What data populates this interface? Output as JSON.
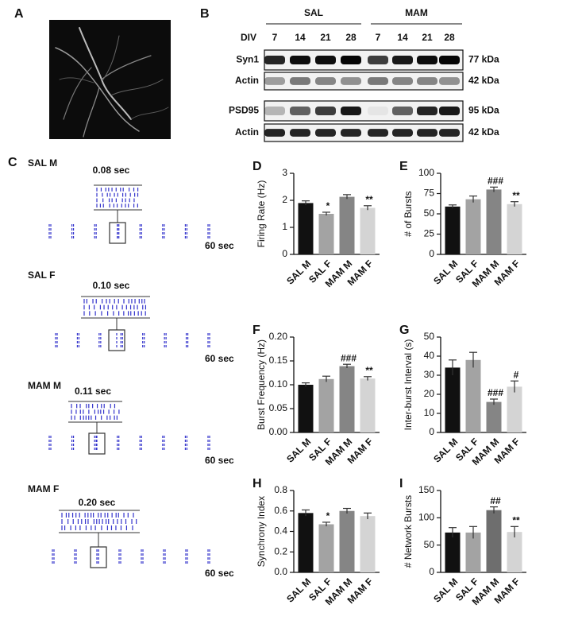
{
  "panel_a": {
    "label": "A"
  },
  "blot": {
    "label": "B",
    "groups": [
      "SAL",
      "MAM"
    ],
    "div_label": "DIV",
    "div_values": [
      7,
      14,
      21,
      28,
      7,
      14,
      21,
      28
    ],
    "rows": [
      {
        "name": "Syn1",
        "size": "77 kDa"
      },
      {
        "name": "Actin",
        "size": "42 kDa"
      },
      {
        "name": "PSD95",
        "size": "95 kDa"
      },
      {
        "name": "Actin",
        "size": "42 kDa"
      }
    ]
  },
  "raster": {
    "label": "C",
    "recordings": [
      {
        "name": "SAL M",
        "window": "0.08 sec",
        "duration": "60 sec"
      },
      {
        "name": "SAL F",
        "window": "0.10 sec",
        "duration": "60 sec"
      },
      {
        "name": "MAM M",
        "window": "0.11 sec",
        "duration": "60 sec"
      },
      {
        "name": "MAM F",
        "window": "0.20 sec",
        "duration": "60 sec"
      }
    ]
  },
  "chart_data": [
    {
      "type": "bar",
      "label": "D",
      "y_label": "Firing Rate (Hz)",
      "categories": [
        "SAL M",
        "SAL F",
        "MAM M",
        "MAM F"
      ],
      "values": [
        1.9,
        1.5,
        2.13,
        1.72
      ],
      "errors": [
        0.08,
        0.06,
        0.08,
        0.08
      ],
      "colors": [
        "#111111",
        "#a3a3a3",
        "#858585",
        "#d4d4d4"
      ],
      "annotations": [
        null,
        "*",
        null,
        "**"
      ],
      "ylim": [
        0,
        3
      ],
      "yticks": [
        0,
        1,
        2,
        3
      ]
    },
    {
      "type": "bar",
      "label": "E",
      "y_label": "# of Bursts",
      "categories": [
        "SAL M",
        "SAL F",
        "MAM M",
        "MAM F"
      ],
      "values": [
        59,
        68,
        80,
        62
      ],
      "errors": [
        2,
        4,
        3,
        3
      ],
      "colors": [
        "#111111",
        "#a3a3a3",
        "#858585",
        "#d4d4d4"
      ],
      "annotations": [
        null,
        null,
        "###",
        "**"
      ],
      "ylim": [
        0,
        100
      ],
      "yticks": [
        0,
        25,
        50,
        75,
        100
      ]
    },
    {
      "type": "bar",
      "label": "F",
      "y_label": "Burst Frequency (Hz)",
      "categories": [
        "SAL M",
        "SAL F",
        "MAM M",
        "MAM F"
      ],
      "values": [
        0.1,
        0.112,
        0.139,
        0.113
      ],
      "errors": [
        0.004,
        0.006,
        0.004,
        0.004
      ],
      "colors": [
        "#111111",
        "#a3a3a3",
        "#858585",
        "#d4d4d4"
      ],
      "annotations": [
        null,
        null,
        "###",
        "**"
      ],
      "ylim": [
        0,
        0.2
      ],
      "yticks": [
        {
          "value": 0,
          "label": "0.00"
        },
        {
          "value": 0.05,
          "label": "0.05"
        },
        {
          "value": 0.1,
          "label": "0.10"
        },
        {
          "value": 0.15,
          "label": "0.15"
        },
        {
          "value": 0.2,
          "label": "0.20"
        }
      ]
    },
    {
      "type": "bar",
      "label": "G",
      "y_label": "Inter-burst Interval (s)",
      "categories": [
        "SAL M",
        "SAL F",
        "MAM M",
        "MAM F"
      ],
      "values": [
        34,
        38,
        16,
        24
      ],
      "errors": [
        4,
        4,
        1.5,
        3
      ],
      "colors": [
        "#111111",
        "#a3a3a3",
        "#858585",
        "#d4d4d4"
      ],
      "annotations": [
        null,
        null,
        "###",
        "#"
      ],
      "ylim": [
        0,
        50
      ],
      "yticks": [
        0,
        10,
        20,
        30,
        40,
        50
      ]
    },
    {
      "type": "bar",
      "label": "H",
      "y_label": "Synchrony Index",
      "categories": [
        "SAL M",
        "SAL F",
        "MAM M",
        "MAM F"
      ],
      "values": [
        0.58,
        0.47,
        0.6,
        0.55
      ],
      "errors": [
        0.03,
        0.02,
        0.025,
        0.03
      ],
      "colors": [
        "#111111",
        "#a3a3a3",
        "#858585",
        "#d4d4d4"
      ],
      "annotations": [
        null,
        "*",
        null,
        null
      ],
      "ylim": [
        0,
        0.8
      ],
      "yticks": [
        {
          "value": 0,
          "label": "0.0"
        },
        0.2,
        0.4,
        0.6,
        0.8
      ]
    },
    {
      "type": "bar",
      "label": "I",
      "y_label": "# Network Bursts",
      "categories": [
        "SAL M",
        "SAL F",
        "MAM M",
        "MAM F"
      ],
      "values": [
        73,
        73,
        114,
        74
      ],
      "errors": [
        9,
        11,
        6,
        10
      ],
      "colors": [
        "#111111",
        "#a3a3a3",
        "#6e6e6e",
        "#d4d4d4"
      ],
      "annotations": [
        null,
        null,
        "##",
        "**"
      ],
      "ylim": [
        0,
        150
      ],
      "yticks": [
        0,
        50,
        100,
        150
      ]
    }
  ]
}
